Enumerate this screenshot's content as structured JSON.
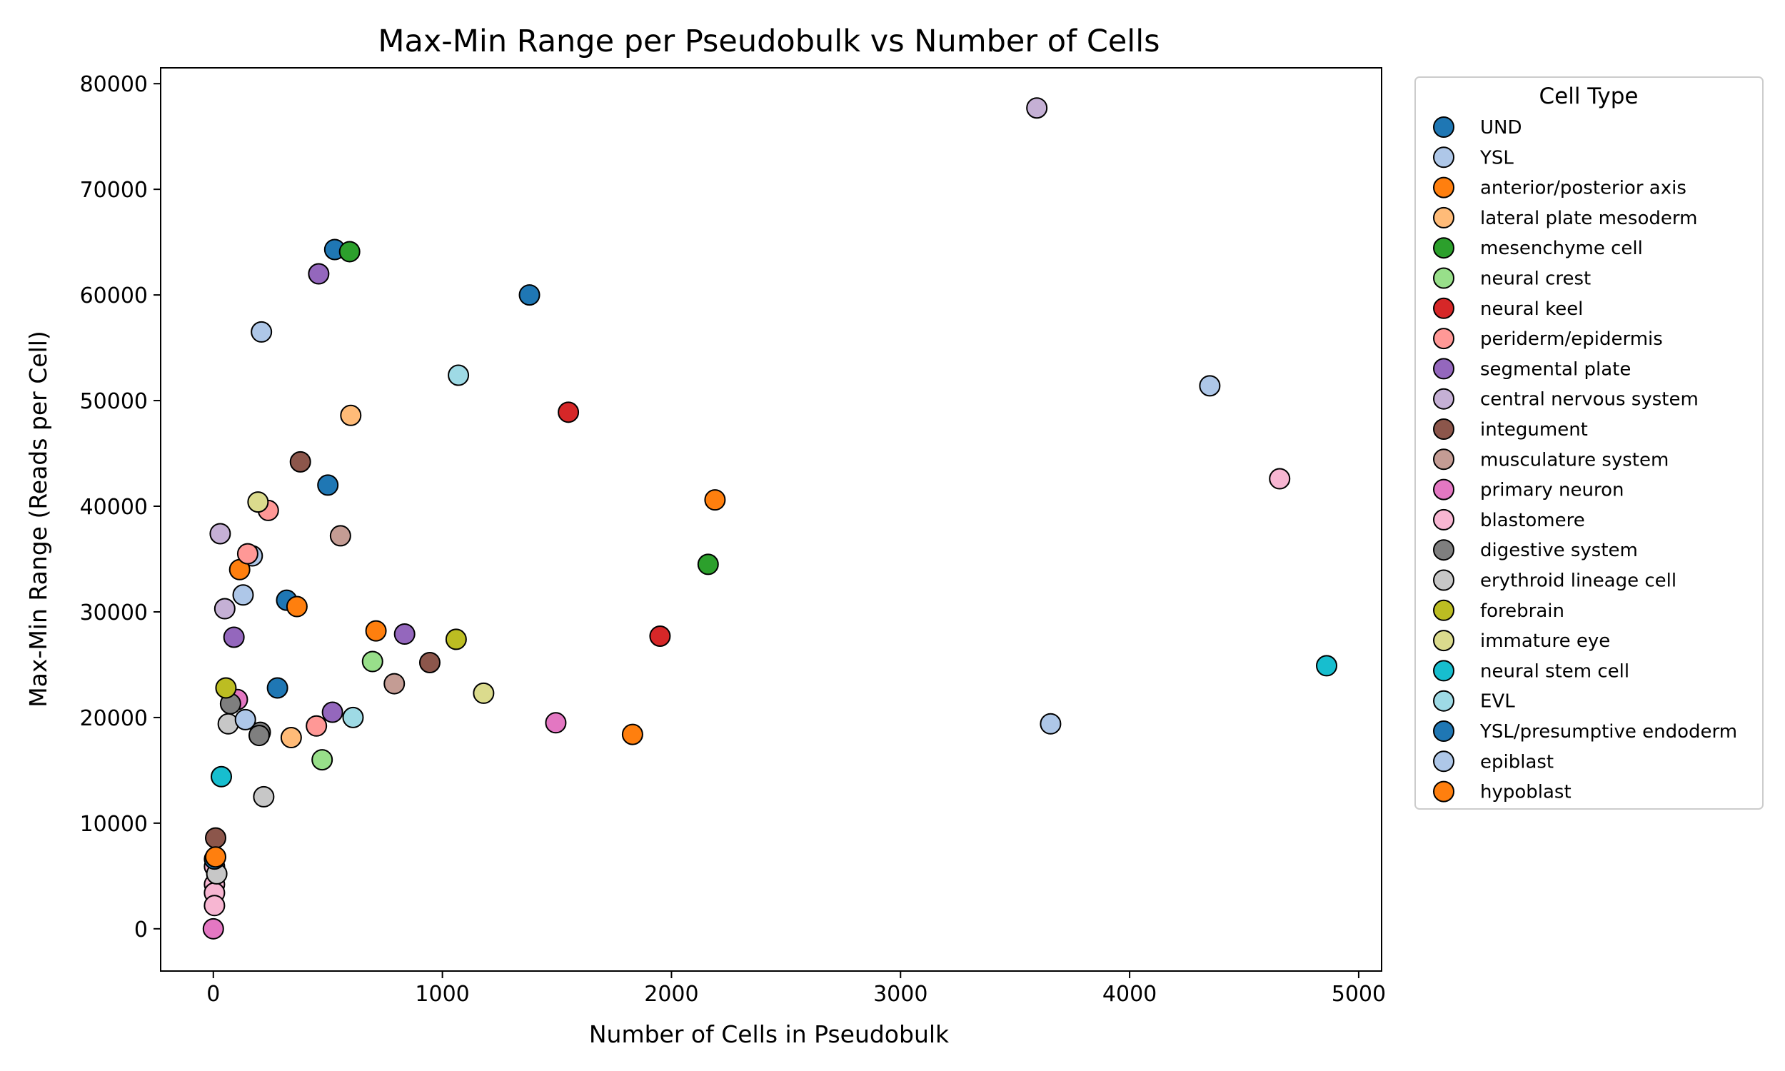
{
  "chart_data": {
    "type": "scatter",
    "title": "Max-Min Range per Pseudobulk vs Number of Cells",
    "xlabel": "Number of Cells in Pseudobulk",
    "ylabel": "Max-Min Range (Reads per Cell)",
    "xlim": [
      -230,
      5100
    ],
    "ylim": [
      -4000,
      81500
    ],
    "xticks": [
      0,
      1000,
      2000,
      3000,
      4000,
      5000
    ],
    "yticks": [
      0,
      10000,
      20000,
      30000,
      40000,
      50000,
      60000,
      70000,
      80000
    ],
    "grid": false,
    "legend": {
      "title": "Cell Type",
      "position": "outside right"
    },
    "series": [
      {
        "name": "UND",
        "color": "#1f77b4",
        "points": [
          [
            530,
            64300
          ],
          [
            1380,
            60000
          ],
          [
            500,
            42000
          ],
          [
            320,
            31100
          ],
          [
            280,
            22800
          ]
        ]
      },
      {
        "name": "YSL",
        "color": "#aec7e8",
        "points": [
          [
            210,
            56500
          ],
          [
            170,
            35300
          ],
          [
            130,
            31600
          ],
          [
            4350,
            51400
          ]
        ]
      },
      {
        "name": "anterior/posterior axis",
        "color": "#ff7f0e",
        "points": [
          [
            2190,
            40600
          ],
          [
            115,
            34000
          ],
          [
            365,
            30500
          ],
          [
            710,
            28200
          ],
          [
            1830,
            18400
          ]
        ]
      },
      {
        "name": "lateral plate mesoderm",
        "color": "#ffbb78",
        "points": [
          [
            600,
            48600
          ],
          [
            340,
            18100
          ]
        ]
      },
      {
        "name": "mesenchyme cell",
        "color": "#2ca02c",
        "points": [
          [
            595,
            64100
          ],
          [
            2160,
            34500
          ]
        ]
      },
      {
        "name": "neural crest",
        "color": "#98df8a",
        "points": [
          [
            695,
            25300
          ],
          [
            475,
            16000
          ]
        ]
      },
      {
        "name": "neural keel",
        "color": "#d62728",
        "points": [
          [
            1550,
            48900
          ],
          [
            1950,
            27700
          ]
        ]
      },
      {
        "name": "periderm/epidermis",
        "color": "#ff9896",
        "points": [
          [
            240,
            39600
          ],
          [
            150,
            35500
          ],
          [
            450,
            19200
          ]
        ]
      },
      {
        "name": "segmental plate",
        "color": "#9467bd",
        "points": [
          [
            460,
            62000
          ],
          [
            835,
            27900
          ],
          [
            90,
            27600
          ],
          [
            520,
            20500
          ]
        ]
      },
      {
        "name": "central nervous system",
        "color": "#c5b0d5",
        "points": [
          [
            3595,
            77700
          ],
          [
            30,
            37400
          ],
          [
            50,
            30300
          ]
        ]
      },
      {
        "name": "integument",
        "color": "#8c564b",
        "points": [
          [
            380,
            44200
          ],
          [
            945,
            25200
          ],
          [
            10,
            8600
          ]
        ]
      },
      {
        "name": "musculature system",
        "color": "#c49c94",
        "points": [
          [
            555,
            37200
          ],
          [
            790,
            23200
          ]
        ]
      },
      {
        "name": "primary neuron",
        "color": "#e377c2",
        "points": [
          [
            1495,
            19500
          ],
          [
            105,
            21700
          ],
          [
            0,
            0
          ]
        ]
      },
      {
        "name": "blastomere",
        "color": "#f7b6d2",
        "points": [
          [
            4655,
            42600
          ],
          [
            5,
            5900
          ],
          [
            5,
            4200
          ],
          [
            5,
            3400
          ],
          [
            5,
            2200
          ]
        ]
      },
      {
        "name": "digestive system",
        "color": "#7f7f7f",
        "points": [
          [
            205,
            18600
          ],
          [
            200,
            18300
          ],
          [
            75,
            21300
          ]
        ]
      },
      {
        "name": "erythroid lineage cell",
        "color": "#c7c7c7",
        "points": [
          [
            65,
            19400
          ],
          [
            220,
            12500
          ],
          [
            15,
            5200
          ]
        ]
      },
      {
        "name": "forebrain",
        "color": "#bcbd22",
        "points": [
          [
            1060,
            27400
          ],
          [
            55,
            22800
          ]
        ]
      },
      {
        "name": "immature eye",
        "color": "#dbdb8d",
        "points": [
          [
            195,
            40400
          ],
          [
            1180,
            22300
          ]
        ]
      },
      {
        "name": "neural stem cell",
        "color": "#17becf",
        "points": [
          [
            4860,
            24900
          ],
          [
            35,
            14400
          ]
        ]
      },
      {
        "name": "EVL",
        "color": "#9edae5",
        "points": [
          [
            1070,
            52400
          ],
          [
            610,
            20000
          ]
        ]
      },
      {
        "name": "YSL/presumptive endoderm",
        "color": "#1f77b4",
        "points": [
          [
            5,
            6600
          ]
        ]
      },
      {
        "name": "epiblast",
        "color": "#aec7e8",
        "points": [
          [
            3655,
            19400
          ],
          [
            140,
            19800
          ]
        ]
      },
      {
        "name": "hypoblast",
        "color": "#ff7f0e",
        "points": [
          [
            10,
            6800
          ]
        ]
      }
    ]
  }
}
